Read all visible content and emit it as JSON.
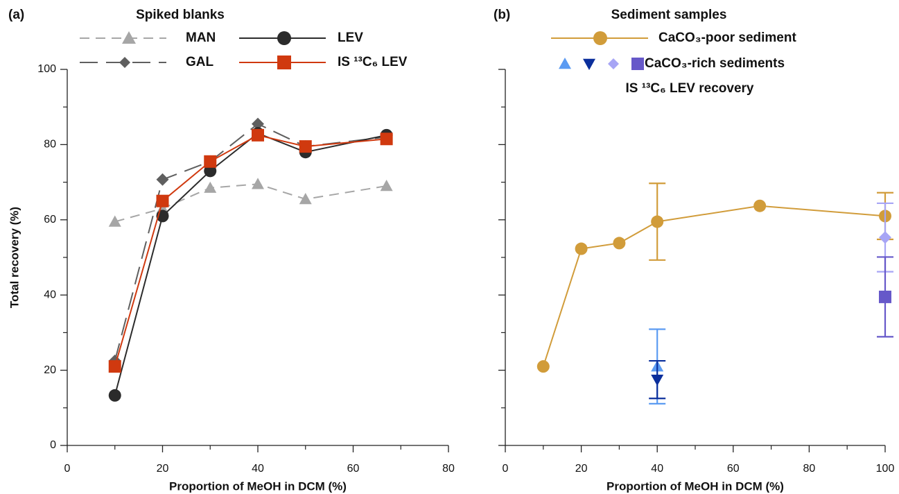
{
  "chart_data": [
    {
      "type": "line",
      "panel_label": "(a)",
      "legend_title": "Spiked blanks",
      "x_label": "Proportion of MeOH in DCM (%)",
      "y_label": "Total recovery (%)",
      "xlim": [
        0,
        80
      ],
      "xticks": [
        0,
        20,
        40,
        60,
        80
      ],
      "minor_xticks": [
        10,
        30,
        50,
        70
      ],
      "ylim": [
        0,
        100
      ],
      "yticks": [
        0,
        20,
        40,
        60,
        80,
        100
      ],
      "minor_yticks": [
        10,
        30,
        50,
        70,
        90
      ],
      "ytick_labels": true,
      "series": [
        {
          "name": "MAN",
          "color": "#a6a6a6",
          "linestyle": "dashed",
          "marker": "triangle",
          "x": [
            10,
            20,
            30,
            40,
            50,
            67
          ],
          "values": [
            59.5,
            63,
            68.5,
            69.5,
            65.5,
            69
          ]
        },
        {
          "name": "GAL",
          "color": "#5f5f5f",
          "linestyle": "longdash",
          "marker": "diamond",
          "x": [
            10,
            20,
            30,
            40,
            50,
            67
          ],
          "values": [
            22.5,
            70.7,
            75.5,
            85.5,
            79.5,
            82
          ]
        },
        {
          "name": "LEV",
          "color": "#2b2b2b",
          "linestyle": "solid",
          "marker": "circle",
          "x": [
            10,
            20,
            30,
            40,
            50,
            67
          ],
          "values": [
            13.3,
            61,
            73,
            83,
            78,
            82.5
          ]
        },
        {
          "name": "IS ¹³C₆ LEV",
          "color": "#d0390f",
          "linestyle": "solid",
          "marker": "square",
          "x": [
            10,
            20,
            30,
            40,
            50,
            67
          ],
          "values": [
            21,
            65,
            75.5,
            82.5,
            79.5,
            81.5
          ]
        }
      ]
    },
    {
      "type": "line",
      "panel_label": "(b)",
      "legend_title": "Sediment samples",
      "x_label": "Proportion of MeOH in DCM (%)",
      "xlim": [
        0,
        100
      ],
      "xticks": [
        0,
        20,
        40,
        60,
        80,
        100
      ],
      "minor_xticks": [
        10,
        30,
        50,
        70,
        90
      ],
      "ylim": [
        0,
        100
      ],
      "yticks": [
        0,
        20,
        40,
        60,
        80,
        100
      ],
      "minor_yticks": [
        10,
        30,
        50,
        70,
        90
      ],
      "ytick_labels": false,
      "legend_group_label": "CaCO₃-rich sediments",
      "legend_note": "IS ¹³C₆ LEV recovery",
      "series": [
        {
          "name": "CaCO₃-poor sediment",
          "color": "#d19c3a",
          "linestyle": "solid",
          "marker": "circle",
          "x": [
            10,
            20,
            30,
            40,
            67,
            100
          ],
          "values": [
            21,
            52.3,
            53.8,
            59.5,
            63.7,
            61
          ],
          "errors": [
            null,
            null,
            null,
            10.2,
            null,
            6.2
          ]
        },
        {
          "color": "#5b9bf2",
          "linestyle": "none",
          "marker": "triangle",
          "x": [
            40
          ],
          "values": [
            21
          ],
          "errors": [
            9.9
          ]
        },
        {
          "color": "#0b2f9c",
          "linestyle": "none",
          "marker": "triangle-down",
          "x": [
            40
          ],
          "values": [
            17.5
          ],
          "errors": [
            5
          ]
        },
        {
          "color": "#a7a5f5",
          "linestyle": "none",
          "marker": "diamond",
          "x": [
            100
          ],
          "values": [
            55.3
          ],
          "errors": [
            9.1
          ]
        },
        {
          "color": "#6658c9",
          "linestyle": "none",
          "marker": "square",
          "x": [
            100
          ],
          "values": [
            39.5
          ],
          "errors": [
            10.6
          ]
        }
      ]
    }
  ]
}
